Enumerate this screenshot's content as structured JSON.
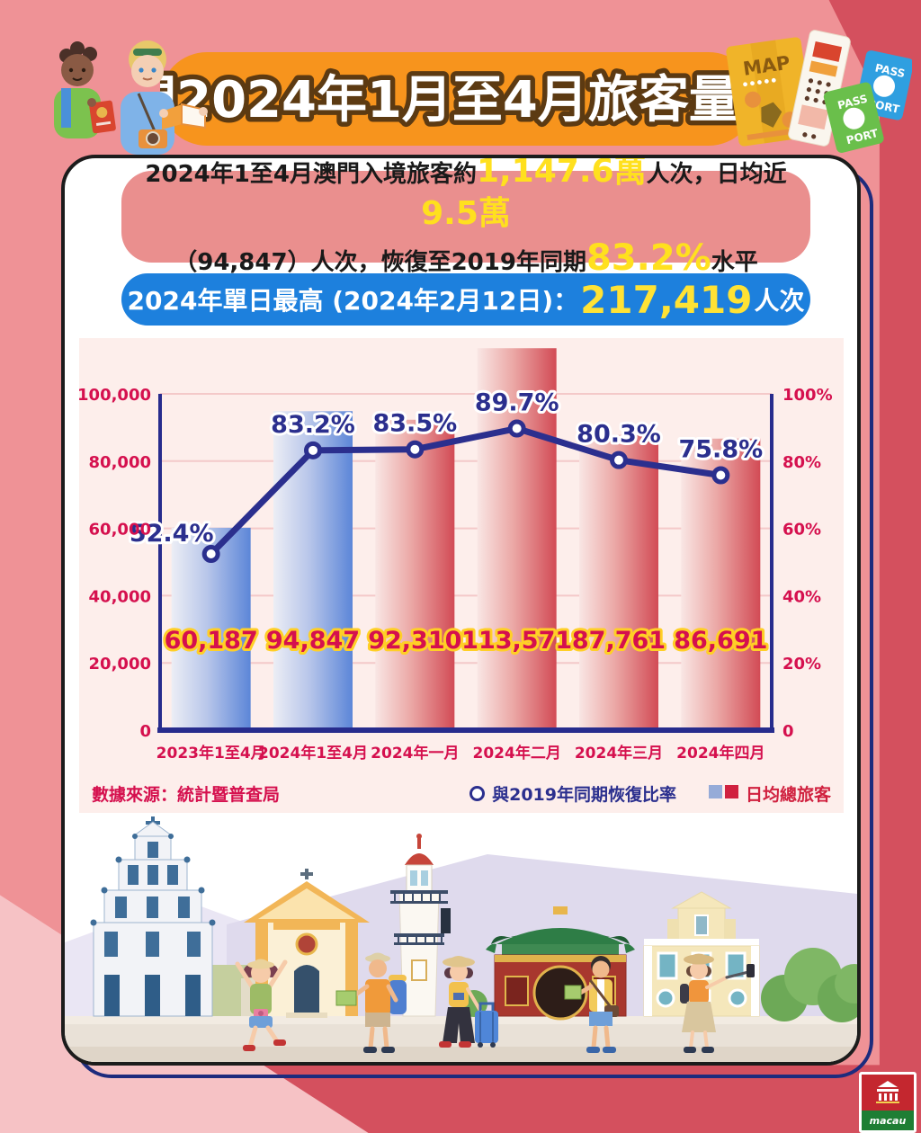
{
  "header": {
    "title": "澳門2024年1月至4月旅客量理想"
  },
  "summary": {
    "line1_part1": "2024年1至4月澳門入境旅客約",
    "line1_highlight1": "1,147.6萬",
    "line1_part2": "人次，日均近",
    "line1_highlight2": "9.5萬",
    "line2_part1": "（94,847）人次，恢復至2019年同期",
    "line2_highlight": "83.2%",
    "line2_part2": "水平"
  },
  "record_banner": {
    "prefix": "2024年單日最高 (2024年2月12日)：",
    "value": "217,419",
    "suffix": "人次"
  },
  "chart_data": {
    "type": "bar+line",
    "categories": [
      "2023年1至4月",
      "2024年1至4月",
      "2024年一月",
      "2024年二月",
      "2024年三月",
      "2024年四月"
    ],
    "series": [
      {
        "name": "日均總旅客",
        "type": "bar",
        "values": [
          60187,
          94847,
          92310,
          113571,
          87761,
          86691
        ],
        "labels": [
          "60,187",
          "94,847",
          "92,310",
          "113,571",
          "87,761",
          "86,691"
        ],
        "colors": [
          "blue",
          "blue",
          "red",
          "red",
          "red",
          "red"
        ],
        "axis": "left"
      },
      {
        "name": "與2019年同期恢復比率",
        "type": "line",
        "values": [
          52.4,
          83.2,
          83.5,
          89.7,
          80.3,
          75.8
        ],
        "labels": [
          "52.4%",
          "83.2%",
          "83.5%",
          "89.7%",
          "80.3%",
          "75.8%"
        ],
        "axis": "right"
      }
    ],
    "left_axis": {
      "ticks": [
        "0",
        "20,000",
        "40,000",
        "60,000",
        "80,000",
        "100,000"
      ],
      "min": 0,
      "max": 100000
    },
    "right_axis": {
      "ticks": [
        "0",
        "20%",
        "40%",
        "60%",
        "80%",
        "100%"
      ],
      "min": 0,
      "max": 100
    },
    "grid": true,
    "legend_position": "bottom-right"
  },
  "footer": {
    "source": "數據來源：統計暨普查局"
  },
  "logo": {
    "text": "macau"
  },
  "colors": {
    "accent_orange": "#f7941d",
    "banner_blue": "#1d80dd",
    "highlight_yellow": "#ffe01e",
    "crimson": "#d5104e",
    "navy": "#2b2f8e",
    "bar_blue": "#5c86d8",
    "bar_red": "#d24b55",
    "panel_pink": "#fdeeeb",
    "summary_salmon": "#ea8f8e",
    "background_pink": "#ef9296",
    "background_red": "#d4505e"
  }
}
